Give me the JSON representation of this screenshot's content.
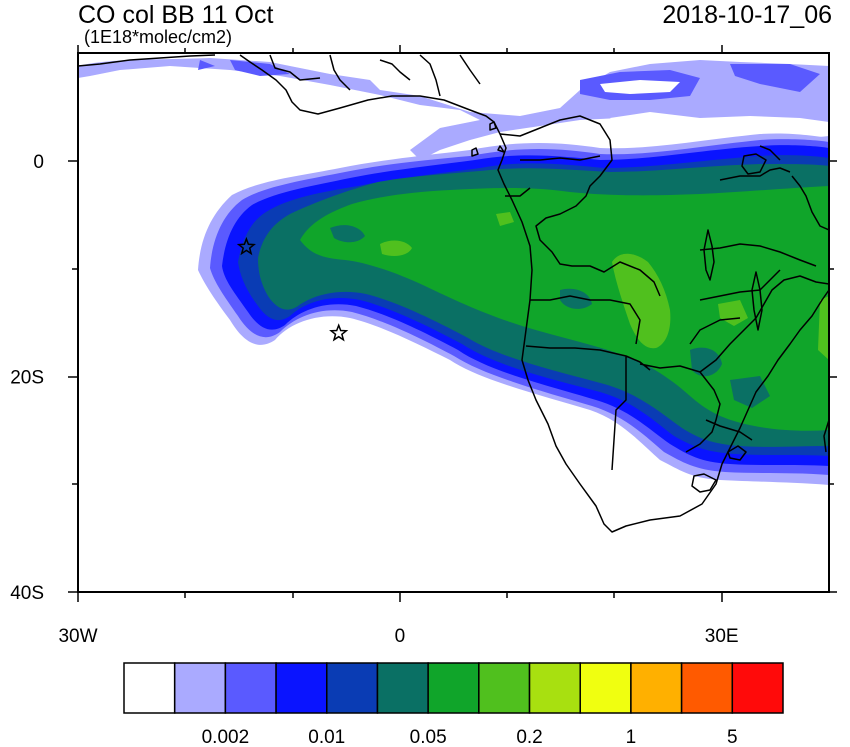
{
  "header": {
    "title": "CO col BB 11 Oct",
    "units": "(1E18*molec/cm2)",
    "valid_time": "2018-10-17_06"
  },
  "axes": {
    "x_ticks": [
      {
        "value": -30,
        "label": "30W"
      },
      {
        "value": 0,
        "label": "0"
      },
      {
        "value": 30,
        "label": "30E"
      }
    ],
    "y_ticks": [
      {
        "value": 0,
        "label": "0"
      },
      {
        "value": -20,
        "label": "20S"
      },
      {
        "value": -40,
        "label": "40S"
      }
    ],
    "lon_range": [
      -30,
      40
    ],
    "lat_range": [
      -40,
      10
    ]
  },
  "colorbar": {
    "colors": [
      "#ffffff",
      "#aaaaff",
      "#5a5aff",
      "#0a14ff",
      "#0a3cb4",
      "#0a7064",
      "#10a52a",
      "#50c01e",
      "#a8e010",
      "#f0ff10",
      "#ffb000",
      "#ff5a00",
      "#ff0a0a"
    ],
    "labels": [
      "0.002",
      "0.01",
      "0.05",
      "0.2",
      "1",
      "5"
    ]
  },
  "markers": [
    {
      "name": "star-marker-west",
      "lon": -14.3,
      "lat": -8.0
    },
    {
      "name": "star-marker-south",
      "lon": -5.7,
      "lat": -16.0
    }
  ]
}
